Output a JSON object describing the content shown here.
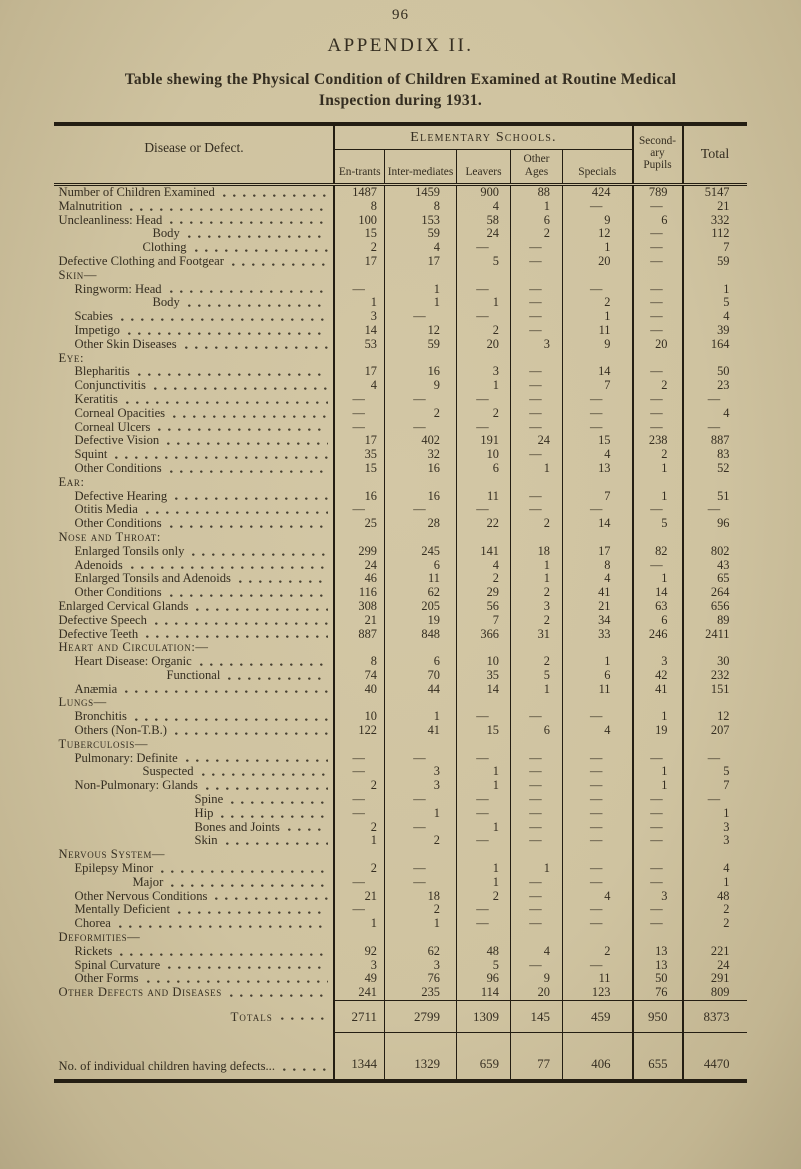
{
  "page": {
    "number": "96",
    "appendix": "APPENDIX II.",
    "title_line1": "Table shewing the Physical Condition of Children Examined at Routine Medical",
    "title_line2": "Inspection during 1931."
  },
  "colors": {
    "paper": "#cfc3a0",
    "ink": "#352e21",
    "rule": "#241e13"
  },
  "table": {
    "corner_header": "Disease or Defect.",
    "group_header": "Elementary Schools.",
    "sub_columns": [
      "En-trants",
      "Inter-mediates",
      "Leavers",
      "Other Ages",
      "Specials"
    ],
    "secondary_header": "Second-ary Pupils",
    "total_header": "Total",
    "rows": [
      {
        "label": "Number of Children Examined",
        "ind": 0,
        "sc": false,
        "values": [
          "1487",
          "1459",
          "900",
          "88",
          "424",
          "789",
          "5147"
        ]
      },
      {
        "label": "Malnutrition",
        "ind": 0,
        "sc": false,
        "values": [
          "8",
          "8",
          "4",
          "1",
          "—",
          "—",
          "21"
        ]
      },
      {
        "label": "Uncleanliness: Head",
        "ind": 0,
        "sc": false,
        "values": [
          "100",
          "153",
          "58",
          "6",
          "9",
          "6",
          "332"
        ]
      },
      {
        "label": "Body",
        "ind": 4,
        "sc": false,
        "values": [
          "15",
          "59",
          "24",
          "2",
          "12",
          "—",
          "112"
        ]
      },
      {
        "label": "Clothing",
        "ind": 3,
        "sc": false,
        "values": [
          "2",
          "4",
          "—",
          "—",
          "1",
          "—",
          "7"
        ]
      },
      {
        "label": "Defective Clothing and Footgear",
        "ind": 0,
        "sc": false,
        "values": [
          "17",
          "17",
          "5",
          "—",
          "20",
          "—",
          "59"
        ]
      },
      {
        "label": "Skin—",
        "ind": 0,
        "sc": true,
        "values": []
      },
      {
        "label": "Ringworm: Head",
        "ind": 1,
        "sc": false,
        "values": [
          "—",
          "1",
          "—",
          "—",
          "—",
          "—",
          "1"
        ]
      },
      {
        "label": "Body",
        "ind": 4,
        "sc": false,
        "values": [
          "1",
          "1",
          "1",
          "—",
          "2",
          "—",
          "5"
        ]
      },
      {
        "label": "Scabies",
        "ind": 1,
        "sc": false,
        "values": [
          "3",
          "—",
          "—",
          "—",
          "1",
          "—",
          "4"
        ]
      },
      {
        "label": "Impetigo",
        "ind": 1,
        "sc": false,
        "values": [
          "14",
          "12",
          "2",
          "—",
          "11",
          "—",
          "39"
        ]
      },
      {
        "label": "Other Skin Diseases",
        "ind": 1,
        "sc": false,
        "values": [
          "53",
          "59",
          "20",
          "3",
          "9",
          "20",
          "164"
        ]
      },
      {
        "label": "Eye:",
        "ind": 0,
        "sc": true,
        "values": []
      },
      {
        "label": "Blepharitis",
        "ind": 1,
        "sc": false,
        "values": [
          "17",
          "16",
          "3",
          "—",
          "14",
          "—",
          "50"
        ]
      },
      {
        "label": "Conjunctivitis",
        "ind": 1,
        "sc": false,
        "values": [
          "4",
          "9",
          "1",
          "—",
          "7",
          "2",
          "23"
        ]
      },
      {
        "label": "Keratitis",
        "ind": 1,
        "sc": false,
        "values": [
          "—",
          "—",
          "—",
          "—",
          "—",
          "—",
          "—"
        ]
      },
      {
        "label": "Corneal Opacities",
        "ind": 1,
        "sc": false,
        "values": [
          "—",
          "2",
          "2",
          "—",
          "—",
          "—",
          "4"
        ]
      },
      {
        "label": "Corneal Ulcers",
        "ind": 1,
        "sc": false,
        "values": [
          "—",
          "—",
          "—",
          "—",
          "—",
          "—",
          "—"
        ]
      },
      {
        "label": "Defective Vision",
        "ind": 1,
        "sc": false,
        "values": [
          "17",
          "402",
          "191",
          "24",
          "15",
          "238",
          "887"
        ]
      },
      {
        "label": "Squint",
        "ind": 1,
        "sc": false,
        "values": [
          "35",
          "32",
          "10",
          "—",
          "4",
          "2",
          "83"
        ]
      },
      {
        "label": "Other Conditions",
        "ind": 1,
        "sc": false,
        "values": [
          "15",
          "16",
          "6",
          "1",
          "13",
          "1",
          "52"
        ]
      },
      {
        "label": "Ear:",
        "ind": 0,
        "sc": true,
        "values": []
      },
      {
        "label": "Defective Hearing",
        "ind": 1,
        "sc": false,
        "values": [
          "16",
          "16",
          "11",
          "—",
          "7",
          "1",
          "51"
        ]
      },
      {
        "label": "Otitis Media",
        "ind": 1,
        "sc": false,
        "values": [
          "—",
          "—",
          "—",
          "—",
          "—",
          "—",
          "—"
        ]
      },
      {
        "label": "Other Conditions",
        "ind": 1,
        "sc": false,
        "values": [
          "25",
          "28",
          "22",
          "2",
          "14",
          "5",
          "96"
        ]
      },
      {
        "label": "Nose and Throat:",
        "ind": 0,
        "sc": true,
        "values": []
      },
      {
        "label": "Enlarged Tonsils only",
        "ind": 1,
        "sc": false,
        "values": [
          "299",
          "245",
          "141",
          "18",
          "17",
          "82",
          "802"
        ]
      },
      {
        "label": "Adenoids",
        "ind": 1,
        "sc": false,
        "values": [
          "24",
          "6",
          "4",
          "1",
          "8",
          "—",
          "43"
        ]
      },
      {
        "label": "Enlarged Tonsils and Adenoids",
        "ind": 1,
        "sc": false,
        "values": [
          "46",
          "11",
          "2",
          "1",
          "4",
          "1",
          "65"
        ]
      },
      {
        "label": "Other Conditions",
        "ind": 1,
        "sc": false,
        "values": [
          "116",
          "62",
          "29",
          "2",
          "41",
          "14",
          "264"
        ]
      },
      {
        "label": "Enlarged Cervical Glands",
        "ind": 0,
        "sc": false,
        "values": [
          "308",
          "205",
          "56",
          "3",
          "21",
          "63",
          "656"
        ]
      },
      {
        "label": "Defective Speech",
        "ind": 0,
        "sc": false,
        "values": [
          "21",
          "19",
          "7",
          "2",
          "34",
          "6",
          "89"
        ]
      },
      {
        "label": "Defective Teeth",
        "ind": 0,
        "sc": false,
        "values": [
          "887",
          "848",
          "366",
          "31",
          "33",
          "246",
          "2411"
        ]
      },
      {
        "label": "Heart and Circulation:—",
        "ind": 0,
        "sc": true,
        "values": []
      },
      {
        "label": "Heart Disease: Organic",
        "ind": 1,
        "sc": false,
        "values": [
          "8",
          "6",
          "10",
          "2",
          "1",
          "3",
          "30"
        ]
      },
      {
        "label": "Functional",
        "ind": 5,
        "sc": false,
        "values": [
          "74",
          "70",
          "35",
          "5",
          "6",
          "42",
          "232"
        ]
      },
      {
        "label": "Anæmia",
        "ind": 1,
        "sc": false,
        "values": [
          "40",
          "44",
          "14",
          "1",
          "11",
          "41",
          "151"
        ]
      },
      {
        "label": "Lungs—",
        "ind": 0,
        "sc": true,
        "values": []
      },
      {
        "label": "Bronchitis",
        "ind": 1,
        "sc": false,
        "values": [
          "10",
          "1",
          "—",
          "—",
          "—",
          "1",
          "12"
        ]
      },
      {
        "label": "Others (Non-T.B.)",
        "ind": 1,
        "sc": false,
        "values": [
          "122",
          "41",
          "15",
          "6",
          "4",
          "19",
          "207"
        ]
      },
      {
        "label": "Tuberculosis—",
        "ind": 0,
        "sc": true,
        "values": []
      },
      {
        "label": "Pulmonary: Definite",
        "ind": 1,
        "sc": false,
        "values": [
          "—",
          "—",
          "—",
          "—",
          "—",
          "—",
          "—"
        ]
      },
      {
        "label": "Suspected",
        "ind": 3,
        "sc": false,
        "values": [
          "—",
          "3",
          "1",
          "—",
          "—",
          "1",
          "5"
        ]
      },
      {
        "label": "Non-Pulmonary: Glands",
        "ind": 1,
        "sc": false,
        "values": [
          "2",
          "3",
          "1",
          "—",
          "—",
          "1",
          "7"
        ]
      },
      {
        "label": "Spine",
        "ind": 6,
        "sc": false,
        "values": [
          "—",
          "—",
          "—",
          "—",
          "—",
          "—",
          "—"
        ]
      },
      {
        "label": "Hip",
        "ind": 6,
        "sc": false,
        "values": [
          "—",
          "1",
          "—",
          "—",
          "—",
          "—",
          "1"
        ]
      },
      {
        "label": "Bones and Joints",
        "ind": 6,
        "sc": false,
        "values": [
          "2",
          "—",
          "1",
          "—",
          "—",
          "—",
          "3"
        ]
      },
      {
        "label": "Skin",
        "ind": 6,
        "sc": false,
        "values": [
          "1",
          "2",
          "—",
          "—",
          "—",
          "—",
          "3"
        ]
      },
      {
        "label": "Nervous System—",
        "ind": 0,
        "sc": true,
        "values": []
      },
      {
        "label": "Epilepsy Minor",
        "ind": 1,
        "sc": false,
        "values": [
          "2",
          "—",
          "1",
          "1",
          "—",
          "—",
          "4"
        ]
      },
      {
        "label": "Major",
        "ind": 2,
        "sc": false,
        "values": [
          "—",
          "—",
          "1",
          "—",
          "—",
          "—",
          "1"
        ]
      },
      {
        "label": "Other Nervous Conditions",
        "ind": 1,
        "sc": false,
        "values": [
          "21",
          "18",
          "2",
          "—",
          "4",
          "3",
          "48"
        ]
      },
      {
        "label": "Mentally Deficient",
        "ind": 1,
        "sc": false,
        "values": [
          "—",
          "2",
          "—",
          "—",
          "—",
          "—",
          "2"
        ]
      },
      {
        "label": "Chorea",
        "ind": 1,
        "sc": false,
        "values": [
          "1",
          "1",
          "—",
          "—",
          "—",
          "—",
          "2"
        ]
      },
      {
        "label": "Deformities—",
        "ind": 0,
        "sc": true,
        "values": []
      },
      {
        "label": "Rickets",
        "ind": 1,
        "sc": false,
        "values": [
          "92",
          "62",
          "48",
          "4",
          "2",
          "13",
          "221"
        ]
      },
      {
        "label": "Spinal Curvature",
        "ind": 1,
        "sc": false,
        "values": [
          "3",
          "3",
          "5",
          "—",
          "—",
          "13",
          "24"
        ]
      },
      {
        "label": "Other Forms",
        "ind": 1,
        "sc": false,
        "values": [
          "49",
          "76",
          "96",
          "9",
          "11",
          "50",
          "291"
        ]
      },
      {
        "label": "Other Defects and Diseases",
        "ind": 0,
        "sc": true,
        "values": [
          "241",
          "235",
          "114",
          "20",
          "123",
          "76",
          "809"
        ]
      }
    ],
    "totals": {
      "label": "Totals",
      "values": [
        "2711",
        "2799",
        "1309",
        "145",
        "459",
        "950",
        "8373"
      ]
    },
    "individual": {
      "label": "No. of individual children having defects...",
      "values": [
        "1344",
        "1329",
        "659",
        "77",
        "406",
        "655",
        "4470"
      ]
    }
  }
}
